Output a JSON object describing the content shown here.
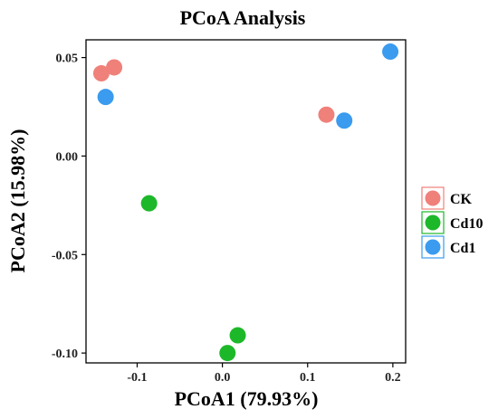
{
  "chart_data": {
    "type": "scatter",
    "title": "PCoA Analysis",
    "xlabel": "PCoA1 (79.93%)",
    "ylabel": "PCoA2 (15.98%)",
    "xlim": [
      -0.16,
      0.215
    ],
    "ylim": [
      -0.105,
      0.059
    ],
    "xticks": [
      {
        "value": -0.1,
        "label": "-0.1"
      },
      {
        "value": 0.0,
        "label": "0.0"
      },
      {
        "value": 0.1,
        "label": "0.1"
      },
      {
        "value": 0.2,
        "label": "0.2"
      }
    ],
    "yticks": [
      {
        "value": 0.05,
        "label": "0.05"
      },
      {
        "value": 0.0,
        "label": "0.00"
      },
      {
        "value": -0.05,
        "label": "-0.05"
      },
      {
        "value": -0.1,
        "label": "-0.10"
      }
    ],
    "grid": false,
    "legend_position": "right",
    "series": [
      {
        "name": "CK",
        "color": "#F0807A",
        "points": [
          {
            "x": -0.142,
            "y": 0.042
          },
          {
            "x": -0.127,
            "y": 0.045
          },
          {
            "x": 0.122,
            "y": 0.021
          }
        ]
      },
      {
        "name": "Cd10",
        "color": "#1DB82A",
        "points": [
          {
            "x": -0.086,
            "y": -0.024
          },
          {
            "x": 0.006,
            "y": -0.1
          },
          {
            "x": 0.018,
            "y": -0.091
          }
        ]
      },
      {
        "name": "Cd1",
        "color": "#3A9BEF",
        "points": [
          {
            "x": -0.137,
            "y": 0.03
          },
          {
            "x": 0.143,
            "y": 0.018
          },
          {
            "x": 0.197,
            "y": 0.053
          }
        ]
      }
    ]
  }
}
